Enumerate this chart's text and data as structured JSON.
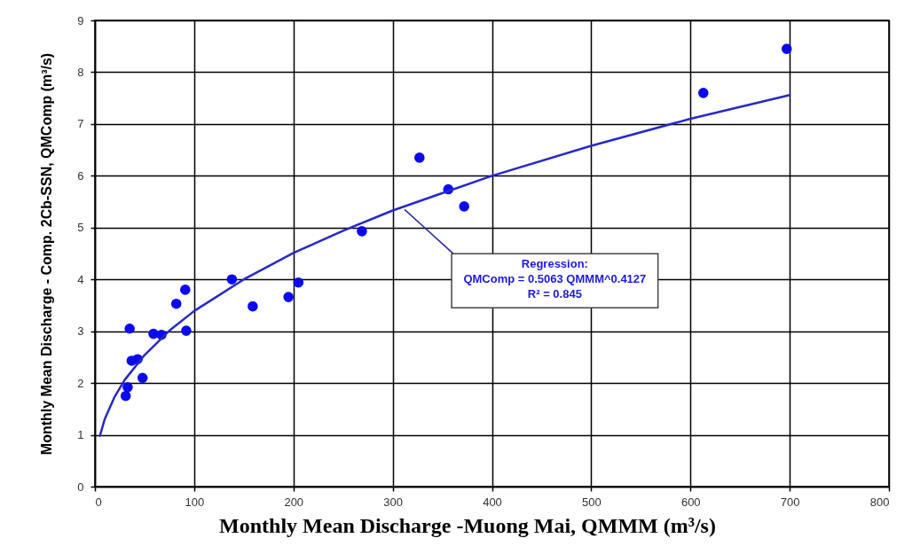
{
  "chart_data": {
    "type": "scatter",
    "xlabel": "Monthly Mean Discharge -Muong Mai, QMMM (m³/s)",
    "ylabel": "Monthly Mean Discharge - Comp. 2Cb-SSN, QMComp (m³/s)",
    "xlim": [
      0,
      800
    ],
    "ylim": [
      0,
      9
    ],
    "xticks": [
      0,
      100,
      200,
      300,
      400,
      500,
      600,
      700,
      800
    ],
    "yticks": [
      0,
      1,
      2,
      3,
      4,
      5,
      6,
      7,
      8,
      9
    ],
    "grid": true,
    "marker": "circle",
    "series": [
      {
        "color": "#0a0aeb",
        "x": [
          31,
          33,
          35,
          37,
          43,
          48,
          59,
          67,
          82,
          91,
          92,
          138,
          159,
          195,
          205,
          269,
          327,
          356,
          372,
          613,
          697
        ],
        "values": [
          1.75,
          1.92,
          3.05,
          2.43,
          2.46,
          2.1,
          2.95,
          2.93,
          3.53,
          3.8,
          3.01,
          4.0,
          3.48,
          3.66,
          3.94,
          4.93,
          6.35,
          5.74,
          5.41,
          7.6,
          8.45
        ]
      },
      {
        "type": "line",
        "marker": "none",
        "line_style": "solid",
        "color": "#2828c8",
        "x": [
          5,
          10,
          20,
          30,
          50,
          75,
          100,
          150,
          200,
          250,
          300,
          400,
          500,
          600,
          700
        ],
        "values": [
          0.98,
          1.31,
          1.74,
          2.06,
          2.54,
          3.01,
          3.39,
          4.0,
          4.51,
          4.94,
          5.33,
          6.0,
          6.58,
          7.1,
          7.56
        ]
      }
    ],
    "annotations": [
      {
        "text": "Regression:\nQMComp = 0.5063 QMMM^0.4127\nR² = 0.845",
        "x": 312,
        "y": 5.35
      }
    ]
  }
}
